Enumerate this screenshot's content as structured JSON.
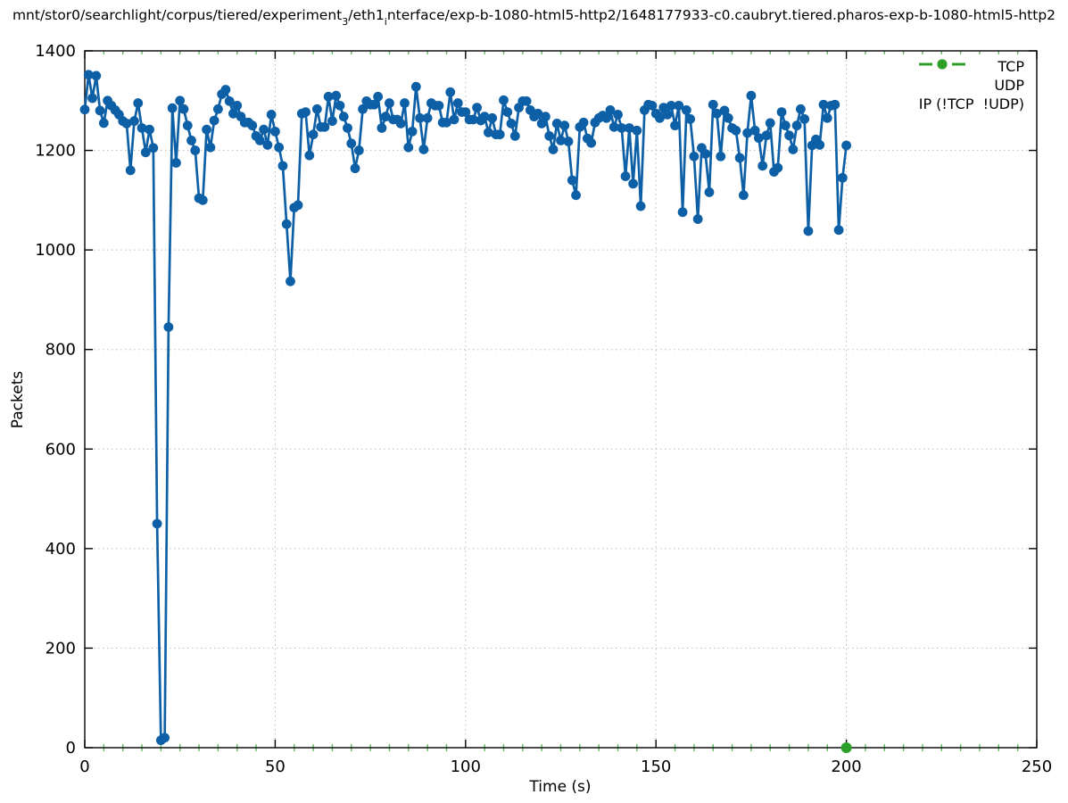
{
  "window": {
    "background": "#ffffff"
  },
  "title": {
    "p1": "mnt/stor0/searchlight/corpus/tiered/experiment",
    "s1": "3",
    "p2": "/eth1",
    "s2": "i",
    "p3": "nterface/exp-b-1080-html5-http2/1648177933-c0.caubryt.tiered.pharos-exp-b-1080-html5-http2"
  },
  "axes": {
    "xlabel": "Time (s)",
    "ylabel": "Packets"
  },
  "legend": {
    "position": "top-right-inside",
    "items": [
      {
        "label": "TCP",
        "color": "#0d5fa6"
      },
      {
        "label": "UDP",
        "color": "#ff7f0e"
      },
      {
        "label": "IP (!TCP  !UDP)",
        "color": "#2aa02a"
      }
    ]
  },
  "colors": {
    "tcp": "#0d5fa6",
    "udp": "#ff7f0e",
    "ip_other": "#2aa02a",
    "axis": "#000000",
    "grid": "#bcbcbc",
    "minor_tick": "#66bb66"
  },
  "chart_data": {
    "type": "line",
    "title": "mnt/stor0/searchlight/corpus/tiered/experiment_3/eth1_interface/exp-b-1080-html5-http2/1648177933-c0.caubryt.tiered.pharos-exp-b-1080-html5-http2",
    "xlabel": "Time (s)",
    "ylabel": "Packets",
    "xlim": [
      0,
      250
    ],
    "ylim": [
      0,
      1400
    ],
    "xticks": [
      0,
      50,
      100,
      150,
      200,
      250
    ],
    "yticks": [
      0,
      200,
      400,
      600,
      800,
      1000,
      1200,
      1400
    ],
    "minor_xtick_step": 5,
    "grid": "dotted at major ticks, both axes",
    "legend_position": "top-right inside plot",
    "marker": "filled-circle",
    "style": "linespoints",
    "series": [
      {
        "name": "TCP",
        "color": "#0d5fa6",
        "t_start": 0,
        "t_step": 1,
        "values": [
          1282,
          1352,
          1305,
          1350,
          1280,
          1255,
          1300,
          1290,
          1281,
          1272,
          1259,
          1254,
          1160,
          1259,
          1295,
          1245,
          1196,
          1242,
          1205,
          450,
          15,
          20,
          845,
          1285,
          1175,
          1300,
          1283,
          1250,
          1220,
          1200,
          1104,
          1100,
          1242,
          1206,
          1260,
          1283,
          1313,
          1322,
          1299,
          1274,
          1290,
          1268,
          1256,
          1256,
          1250,
          1229,
          1220,
          1242,
          1211,
          1272,
          1238,
          1206,
          1169,
          1052,
          937,
          1085,
          1090,
          1274,
          1277,
          1190,
          1232,
          1283,
          1247,
          1247,
          1308,
          1259,
          1310,
          1290,
          1268,
          1245,
          1214,
          1164,
          1200,
          1283,
          1299,
          1292,
          1292,
          1308,
          1245,
          1268,
          1295,
          1262,
          1262,
          1254,
          1295,
          1206,
          1238,
          1328,
          1265,
          1202,
          1265,
          1295,
          1290,
          1290,
          1256,
          1256,
          1317,
          1262,
          1295,
          1277,
          1277,
          1262,
          1262,
          1286,
          1260,
          1268,
          1236,
          1265,
          1232,
          1232,
          1301,
          1277,
          1254,
          1229,
          1286,
          1299,
          1299,
          1281,
          1268,
          1274,
          1254,
          1268,
          1229,
          1202,
          1254,
          1220,
          1250,
          1218,
          1140,
          1110,
          1247,
          1256,
          1224,
          1215,
          1256,
          1265,
          1270,
          1265,
          1281,
          1247,
          1272,
          1245,
          1148,
          1245,
          1133,
          1240,
          1088,
          1281,
          1292,
          1290,
          1274,
          1265,
          1286,
          1272,
          1290,
          1250,
          1290,
          1076,
          1281,
          1263,
          1188,
          1062,
          1205,
          1193,
          1116,
          1292,
          1274,
          1188,
          1280,
          1265,
          1245,
          1240,
          1185,
          1110,
          1235,
          1310,
          1240,
          1225,
          1169,
          1230,
          1255,
          1157,
          1165,
          1277,
          1250,
          1230,
          1202,
          1250,
          1283,
          1263,
          1038,
          1210,
          1222,
          1211,
          1292,
          1265,
          1290,
          1292,
          1040,
          1145,
          1210
        ]
      },
      {
        "name": "UDP",
        "color": "#ff7f0e",
        "points": []
      },
      {
        "name": "IP (!TCP  !UDP)",
        "color": "#2aa02a",
        "points": [
          {
            "x": 200,
            "y": 0
          }
        ]
      }
    ]
  }
}
